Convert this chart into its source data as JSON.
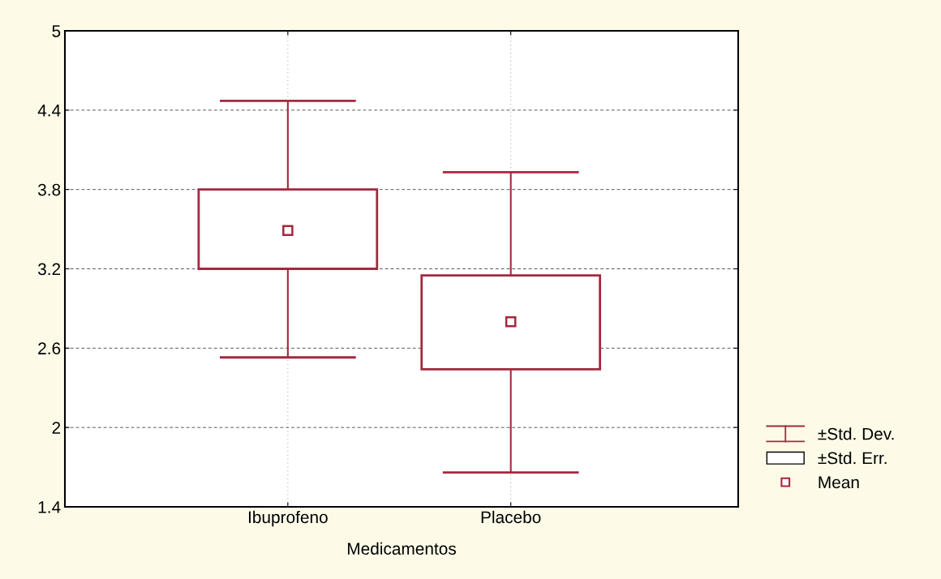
{
  "chart_data": {
    "type": "box",
    "xlabel": "Medicamentos",
    "categories": [
      "Ibuprofeno",
      "Placebo"
    ],
    "ylim": [
      1.4,
      5
    ],
    "yticks": [
      1.4,
      2,
      2.6,
      3.2,
      3.8,
      4.4,
      5
    ],
    "grid": true,
    "marker": "square",
    "boxes": [
      {
        "low": 2.53,
        "q1": 3.2,
        "q3": 3.8,
        "high": 4.47,
        "mean": 3.49
      },
      {
        "low": 1.66,
        "q1": 2.44,
        "q3": 3.15,
        "high": 3.93,
        "mean": 2.8
      }
    ],
    "colors": [
      "#a3293f",
      "#a3293f"
    ],
    "annotations": [
      "±Std. Dev.",
      "±Std. Err.",
      "Mean"
    ]
  }
}
